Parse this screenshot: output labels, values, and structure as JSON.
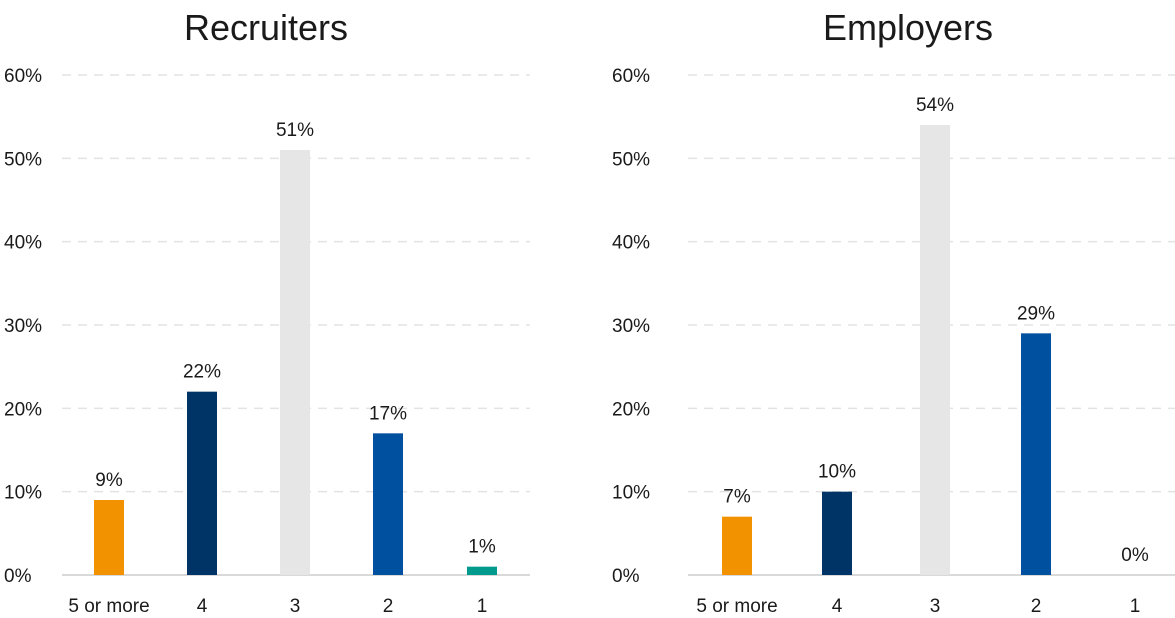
{
  "chart_data": [
    {
      "type": "bar",
      "title": "Recruiters",
      "categories": [
        "5 or more",
        "4",
        "3",
        "2",
        "1"
      ],
      "values": [
        9,
        22,
        51,
        17,
        1
      ],
      "value_labels": [
        "9%",
        "22%",
        "51%",
        "17%",
        "1%"
      ],
      "ylim": [
        0,
        60
      ],
      "yticks": [
        0,
        10,
        20,
        30,
        40,
        50,
        60
      ],
      "ytick_labels": [
        "0%",
        "10%",
        "20%",
        "30%",
        "40%",
        "50%",
        "60%"
      ],
      "grid": true,
      "colors": [
        "#F39200",
        "#003366",
        "#E6E6E6",
        "#0050A0",
        "#009B8C"
      ]
    },
    {
      "type": "bar",
      "title": "Employers",
      "categories": [
        "5 or more",
        "4",
        "3",
        "2",
        "1"
      ],
      "values": [
        7,
        10,
        54,
        29,
        0
      ],
      "value_labels": [
        "7%",
        "10%",
        "54%",
        "29%",
        "0%"
      ],
      "ylim": [
        0,
        60
      ],
      "yticks": [
        0,
        10,
        20,
        30,
        40,
        50,
        60
      ],
      "ytick_labels": [
        "0%",
        "10%",
        "20%",
        "30%",
        "40%",
        "50%",
        "60%"
      ],
      "grid": true,
      "colors": [
        "#F39200",
        "#003366",
        "#E6E6E6",
        "#0050A0",
        "#009B8C"
      ]
    }
  ]
}
